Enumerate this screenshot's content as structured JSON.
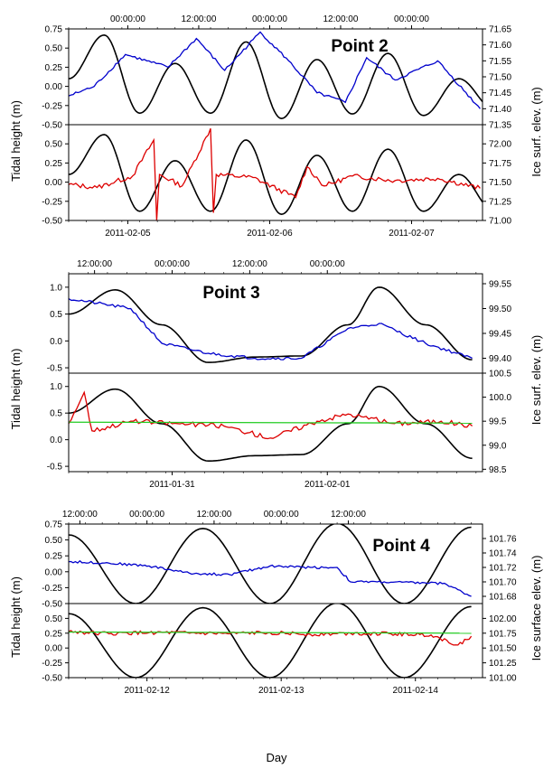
{
  "chart_data": [
    {
      "type": "line",
      "title": "Point 2",
      "x_unit": "days",
      "x_range": [
        "2011-02-04 14:00",
        "2011-02-07 12:00"
      ],
      "top_axis_ticks": [
        {
          "t": "2011-02-04 12:00",
          "label": "12:00:00"
        },
        {
          "t": "2011-02-05 00:00",
          "label": "00:00:00"
        },
        {
          "t": "2011-02-05 12:00",
          "label": "12:00:00"
        },
        {
          "t": "2011-02-06 00:00",
          "label": "00:00:00"
        },
        {
          "t": "2011-02-06 12:00",
          "label": "12:00:00"
        },
        {
          "t": "2011-02-07 00:00",
          "label": "00:00:00"
        }
      ],
      "bottom_axis_ticks": [
        {
          "t": "2011-02-05 00:00",
          "label": "2011-02-05"
        },
        {
          "t": "2011-02-06 00:00",
          "label": "2011-02-06"
        },
        {
          "t": "2011-02-07 00:00",
          "label": "2011-02-07"
        }
      ],
      "panels": [
        {
          "left_ylim": [
            -0.5,
            0.75
          ],
          "left_ticks": [
            "-0.50",
            "-0.25",
            "0.00",
            "0.25",
            "0.50",
            "0.75"
          ],
          "right_ylim": [
            71.35,
            71.65
          ],
          "right_ticks": [
            "71.35",
            "71.40",
            "71.45",
            "71.50",
            "71.55",
            "71.60",
            "71.65"
          ],
          "series": [
            {
              "color": "#000000",
              "axis": "left",
              "x": [
                0,
                0.25,
                0.5,
                0.75,
                1,
                1.25,
                1.5,
                1.75,
                2,
                2.25,
                2.5,
                2.75,
                3
              ],
              "y": [
                0.1,
                0.67,
                -0.35,
                0.3,
                -0.35,
                0.58,
                -0.42,
                0.35,
                -0.36,
                0.43,
                -0.38,
                0.1,
                -0.3
              ]
            },
            {
              "color": "#0000cc",
              "axis": "right",
              "x": [
                0,
                0.18,
                0.4,
                0.55,
                0.7,
                0.9,
                1.1,
                1.35,
                1.55,
                1.75,
                1.95,
                2.1,
                2.3,
                2.6,
                2.9
              ],
              "y": [
                71.44,
                71.47,
                71.57,
                71.55,
                71.53,
                71.62,
                71.52,
                71.64,
                71.55,
                71.45,
                71.42,
                71.56,
                71.49,
                71.55,
                71.4
              ]
            }
          ]
        },
        {
          "left_ylim": [
            -0.5,
            0.75
          ],
          "left_ticks": [
            "-0.50",
            "-0.25",
            "0.00",
            "0.25",
            "0.50"
          ],
          "right_ylim": [
            71.0,
            72.25
          ],
          "right_ticks": [
            "71.00",
            "71.25",
            "71.50",
            "71.75",
            "72.00"
          ],
          "series": [
            {
              "color": "#000000",
              "axis": "left",
              "x": [
                0,
                0.25,
                0.5,
                0.75,
                1,
                1.25,
                1.5,
                1.75,
                2,
                2.25,
                2.5,
                2.75,
                3
              ],
              "y": [
                0.1,
                0.62,
                -0.38,
                0.28,
                -0.38,
                0.55,
                -0.42,
                0.35,
                -0.38,
                0.43,
                -0.38,
                0.1,
                -0.38
              ]
            },
            {
              "color": "#dd0000",
              "axis": "right",
              "x": [
                0,
                0.2,
                0.45,
                0.6,
                0.62,
                0.64,
                0.8,
                1.0,
                1.02,
                1.04,
                1.3,
                1.6,
                1.68,
                1.8,
                2.0,
                2.3,
                2.6,
                2.9
              ],
              "y": [
                71.47,
                71.43,
                71.58,
                72.05,
                71.0,
                71.6,
                71.45,
                72.2,
                71.1,
                71.6,
                71.56,
                71.3,
                71.7,
                71.45,
                71.58,
                71.52,
                71.55,
                71.42
              ]
            }
          ]
        }
      ],
      "ylabel_left": "Tidal height (m)",
      "ylabel_right": "Ice surf. elev. (m)"
    },
    {
      "type": "line",
      "title": "Point 3",
      "x_unit": "days",
      "x_range": [
        "2011-01-30 08:00",
        "2011-02-02 00:00"
      ],
      "top_axis_ticks": [
        {
          "t": "2011-01-30 12:00",
          "label": "12:00:00"
        },
        {
          "t": "2011-01-31 00:00",
          "label": "00:00:00"
        },
        {
          "t": "2011-01-31 12:00",
          "label": "12:00:00"
        },
        {
          "t": "2011-02-01 00:00",
          "label": "00:00:00"
        }
      ],
      "bottom_axis_ticks": [
        {
          "t": "2011-01-31 00:00",
          "label": "2011-01-31"
        },
        {
          "t": "2011-02-01 00:00",
          "label": "2011-02-01"
        }
      ],
      "panels": [
        {
          "left_ylim": [
            -0.6,
            1.25
          ],
          "left_ticks": [
            "-0.5",
            "0.0",
            "0.5",
            "1.0"
          ],
          "right_ylim": [
            99.37,
            99.57
          ],
          "right_ticks": [
            "99.40",
            "99.45",
            "99.50",
            "99.55"
          ],
          "series": [
            {
              "color": "#000000",
              "axis": "left",
              "x": [
                0,
                0.3,
                0.6,
                0.9,
                1.2,
                1.5,
                1.8,
                2.0,
                2.3,
                2.6
              ],
              "y": [
                0.5,
                0.95,
                0.3,
                -0.4,
                -0.3,
                -0.28,
                0.3,
                1.0,
                0.3,
                -0.35
              ]
            },
            {
              "color": "#0000cc",
              "axis": "right",
              "x": [
                0,
                0.4,
                0.6,
                0.9,
                1.2,
                1.5,
                1.8,
                2.0,
                2.3,
                2.6
              ],
              "y": [
                99.52,
                99.5,
                99.43,
                99.41,
                99.4,
                99.4,
                99.46,
                99.47,
                99.43,
                99.4
              ]
            }
          ]
        },
        {
          "left_ylim": [
            -0.6,
            1.25
          ],
          "left_ticks": [
            "-0.5",
            "0.0",
            "0.5",
            "1.0"
          ],
          "right_ylim": [
            98.45,
            100.5
          ],
          "right_ticks": [
            "98.5",
            "99.0",
            "99.5",
            "100.0",
            "100.5"
          ],
          "series": [
            {
              "color": "#000000",
              "axis": "left",
              "x": [
                0,
                0.3,
                0.6,
                0.9,
                1.2,
                1.5,
                1.8,
                2.0,
                2.3,
                2.6
              ],
              "y": [
                0.5,
                0.95,
                0.3,
                -0.4,
                -0.3,
                -0.28,
                0.3,
                1.0,
                0.3,
                -0.35
              ]
            },
            {
              "color": "#dd0000",
              "axis": "right",
              "x": [
                0,
                0.1,
                0.15,
                0.4,
                0.7,
                1.0,
                1.3,
                1.6,
                1.8,
                2.1,
                2.4,
                2.6
              ],
              "y": [
                99.45,
                100.1,
                99.3,
                99.5,
                99.45,
                99.4,
                99.15,
                99.5,
                99.65,
                99.45,
                99.5,
                99.4
              ]
            },
            {
              "color": "#22cc22",
              "axis": "right",
              "x": [
                0,
                2.6
              ],
              "y": [
                99.48,
                99.46
              ]
            }
          ]
        }
      ],
      "ylabel_left": "Tidal height (m)",
      "ylabel_right": "Ice surf. elev. (m)"
    },
    {
      "type": "line",
      "title": "Point 4",
      "x_unit": "days",
      "x_range": [
        "2011-02-11 10:00",
        "2011-02-14 12:00"
      ],
      "top_axis_ticks": [
        {
          "t": "2011-02-11 12:00",
          "label": "12:00:00"
        },
        {
          "t": "2011-02-12 00:00",
          "label": "00:00:00"
        },
        {
          "t": "2011-02-12 12:00",
          "label": "12:00:00"
        },
        {
          "t": "2011-02-13 00:00",
          "label": "00:00:00"
        },
        {
          "t": "2011-02-13 12:00",
          "label": "12:00:00"
        }
      ],
      "bottom_axis_ticks": [
        {
          "t": "2011-02-12 00:00",
          "label": "2011-02-12"
        },
        {
          "t": "2011-02-13 00:00",
          "label": "2011-02-13"
        },
        {
          "t": "2011-02-14 00:00",
          "label": "2011-02-14"
        }
      ],
      "panels": [
        {
          "left_ylim": [
            -0.5,
            0.75
          ],
          "left_ticks": [
            "-0.50",
            "-0.25",
            "0.00",
            "0.25",
            "0.50",
            "0.75"
          ],
          "right_ylim": [
            101.67,
            101.78
          ],
          "right_ticks": [
            "101.68",
            "101.70",
            "101.72",
            "101.74",
            "101.76"
          ],
          "series": [
            {
              "color": "#000000",
              "axis": "left",
              "x": [
                0,
                0.5,
                1.0,
                1.5,
                2.0,
                2.5,
                3.0
              ],
              "y": [
                0.58,
                -0.5,
                0.68,
                -0.5,
                0.76,
                -0.5,
                0.7
              ]
            },
            {
              "color": "#0000cc",
              "axis": "right",
              "x": [
                0,
                0.3,
                0.6,
                0.9,
                1.2,
                1.5,
                1.8,
                2.0,
                2.1,
                2.3,
                2.8,
                3.0
              ],
              "y": [
                101.728,
                101.726,
                101.722,
                101.712,
                101.71,
                101.722,
                101.72,
                101.72,
                101.7,
                101.7,
                101.698,
                101.68
              ]
            }
          ]
        },
        {
          "left_ylim": [
            -0.5,
            0.75
          ],
          "left_ticks": [
            "-0.50",
            "-0.25",
            "0.00",
            "0.25",
            "0.50"
          ],
          "right_ylim": [
            101.0,
            102.25
          ],
          "right_ticks": [
            "101.00",
            "101.25",
            "101.50",
            "101.75",
            "102.00"
          ],
          "series": [
            {
              "color": "#000000",
              "axis": "left",
              "x": [
                0,
                0.5,
                1.0,
                1.5,
                2.0,
                2.5,
                3.0
              ],
              "y": [
                0.58,
                -0.5,
                0.68,
                -0.5,
                0.76,
                -0.5,
                0.7
              ]
            },
            {
              "color": "#dd0000",
              "axis": "right",
              "x": [
                0,
                0.3,
                0.6,
                0.9,
                1.2,
                1.5,
                1.8,
                2.1,
                2.4,
                2.7,
                2.9,
                3.0
              ],
              "y": [
                101.78,
                101.74,
                101.76,
                101.75,
                101.74,
                101.76,
                101.73,
                101.75,
                101.74,
                101.72,
                101.55,
                101.7
              ]
            },
            {
              "color": "#22cc22",
              "axis": "right",
              "x": [
                0,
                3.0
              ],
              "y": [
                101.77,
                101.75
              ]
            }
          ]
        }
      ],
      "ylabel_left": "Tidal height (m)",
      "ylabel_right": "Ice surface elev. (m)"
    }
  ],
  "xlabel": "Day",
  "colors": {
    "tide": "#000000",
    "ice_low": "#0000cc",
    "ice_high": "#dd0000",
    "trend": "#22cc22"
  }
}
